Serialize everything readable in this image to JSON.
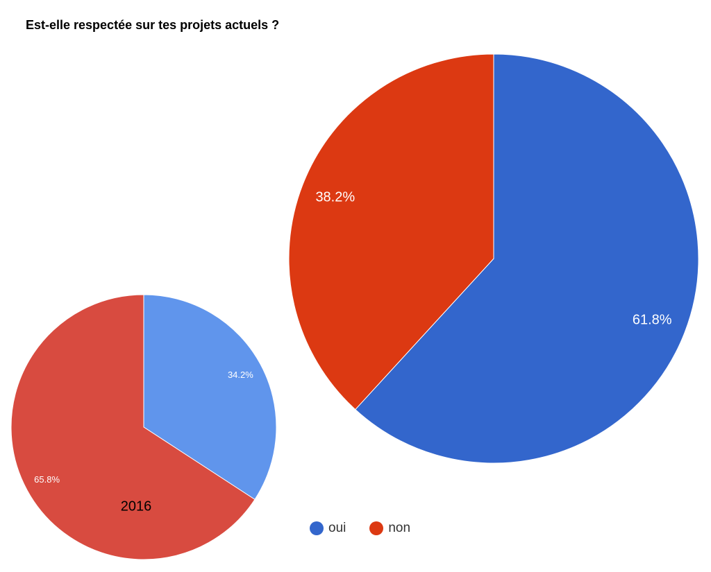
{
  "page": {
    "title": "Est-elle respectée sur tes projets actuels ?",
    "background_color": "#ffffff",
    "title_color": "#000000"
  },
  "chart_data": [
    {
      "type": "pie",
      "id": "pie-current",
      "question": "Est-elle respectée sur tes projets actuels ?",
      "categories": [
        "oui",
        "non"
      ],
      "values": [
        61.8,
        38.2
      ],
      "slices": [
        {
          "label": "oui",
          "value": 61.8,
          "display_label": "61.8%",
          "color": "#3366cc"
        },
        {
          "label": "non",
          "value": 38.2,
          "display_label": "38.2%",
          "color": "#dc3912"
        }
      ],
      "start_angle_deg": 0,
      "direction": "clockwise",
      "slice_label_color": "#ffffff",
      "slice_label_font_px": 20,
      "label_radius_frac": 0.83,
      "legend_position": "bottom"
    },
    {
      "type": "pie",
      "id": "pie-2016",
      "year_label": "2016",
      "categories": [
        "oui",
        "non"
      ],
      "values": [
        34.2,
        65.8
      ],
      "slices": [
        {
          "label": "oui",
          "value": 34.2,
          "display_label": "34.2%",
          "color": "#6095ec"
        },
        {
          "label": "non",
          "value": 65.8,
          "display_label": "65.8%",
          "color": "#d84b40"
        }
      ],
      "start_angle_deg": 0,
      "direction": "clockwise",
      "slice_label_color": "#ffffff",
      "slice_label_font_px": 13,
      "label_radius_frac": 0.83,
      "legend_position": "none"
    }
  ],
  "legend": {
    "text_color": "#333333",
    "items": [
      {
        "label": "oui",
        "color": "#3366cc"
      },
      {
        "label": "non",
        "color": "#dc3912"
      }
    ]
  }
}
